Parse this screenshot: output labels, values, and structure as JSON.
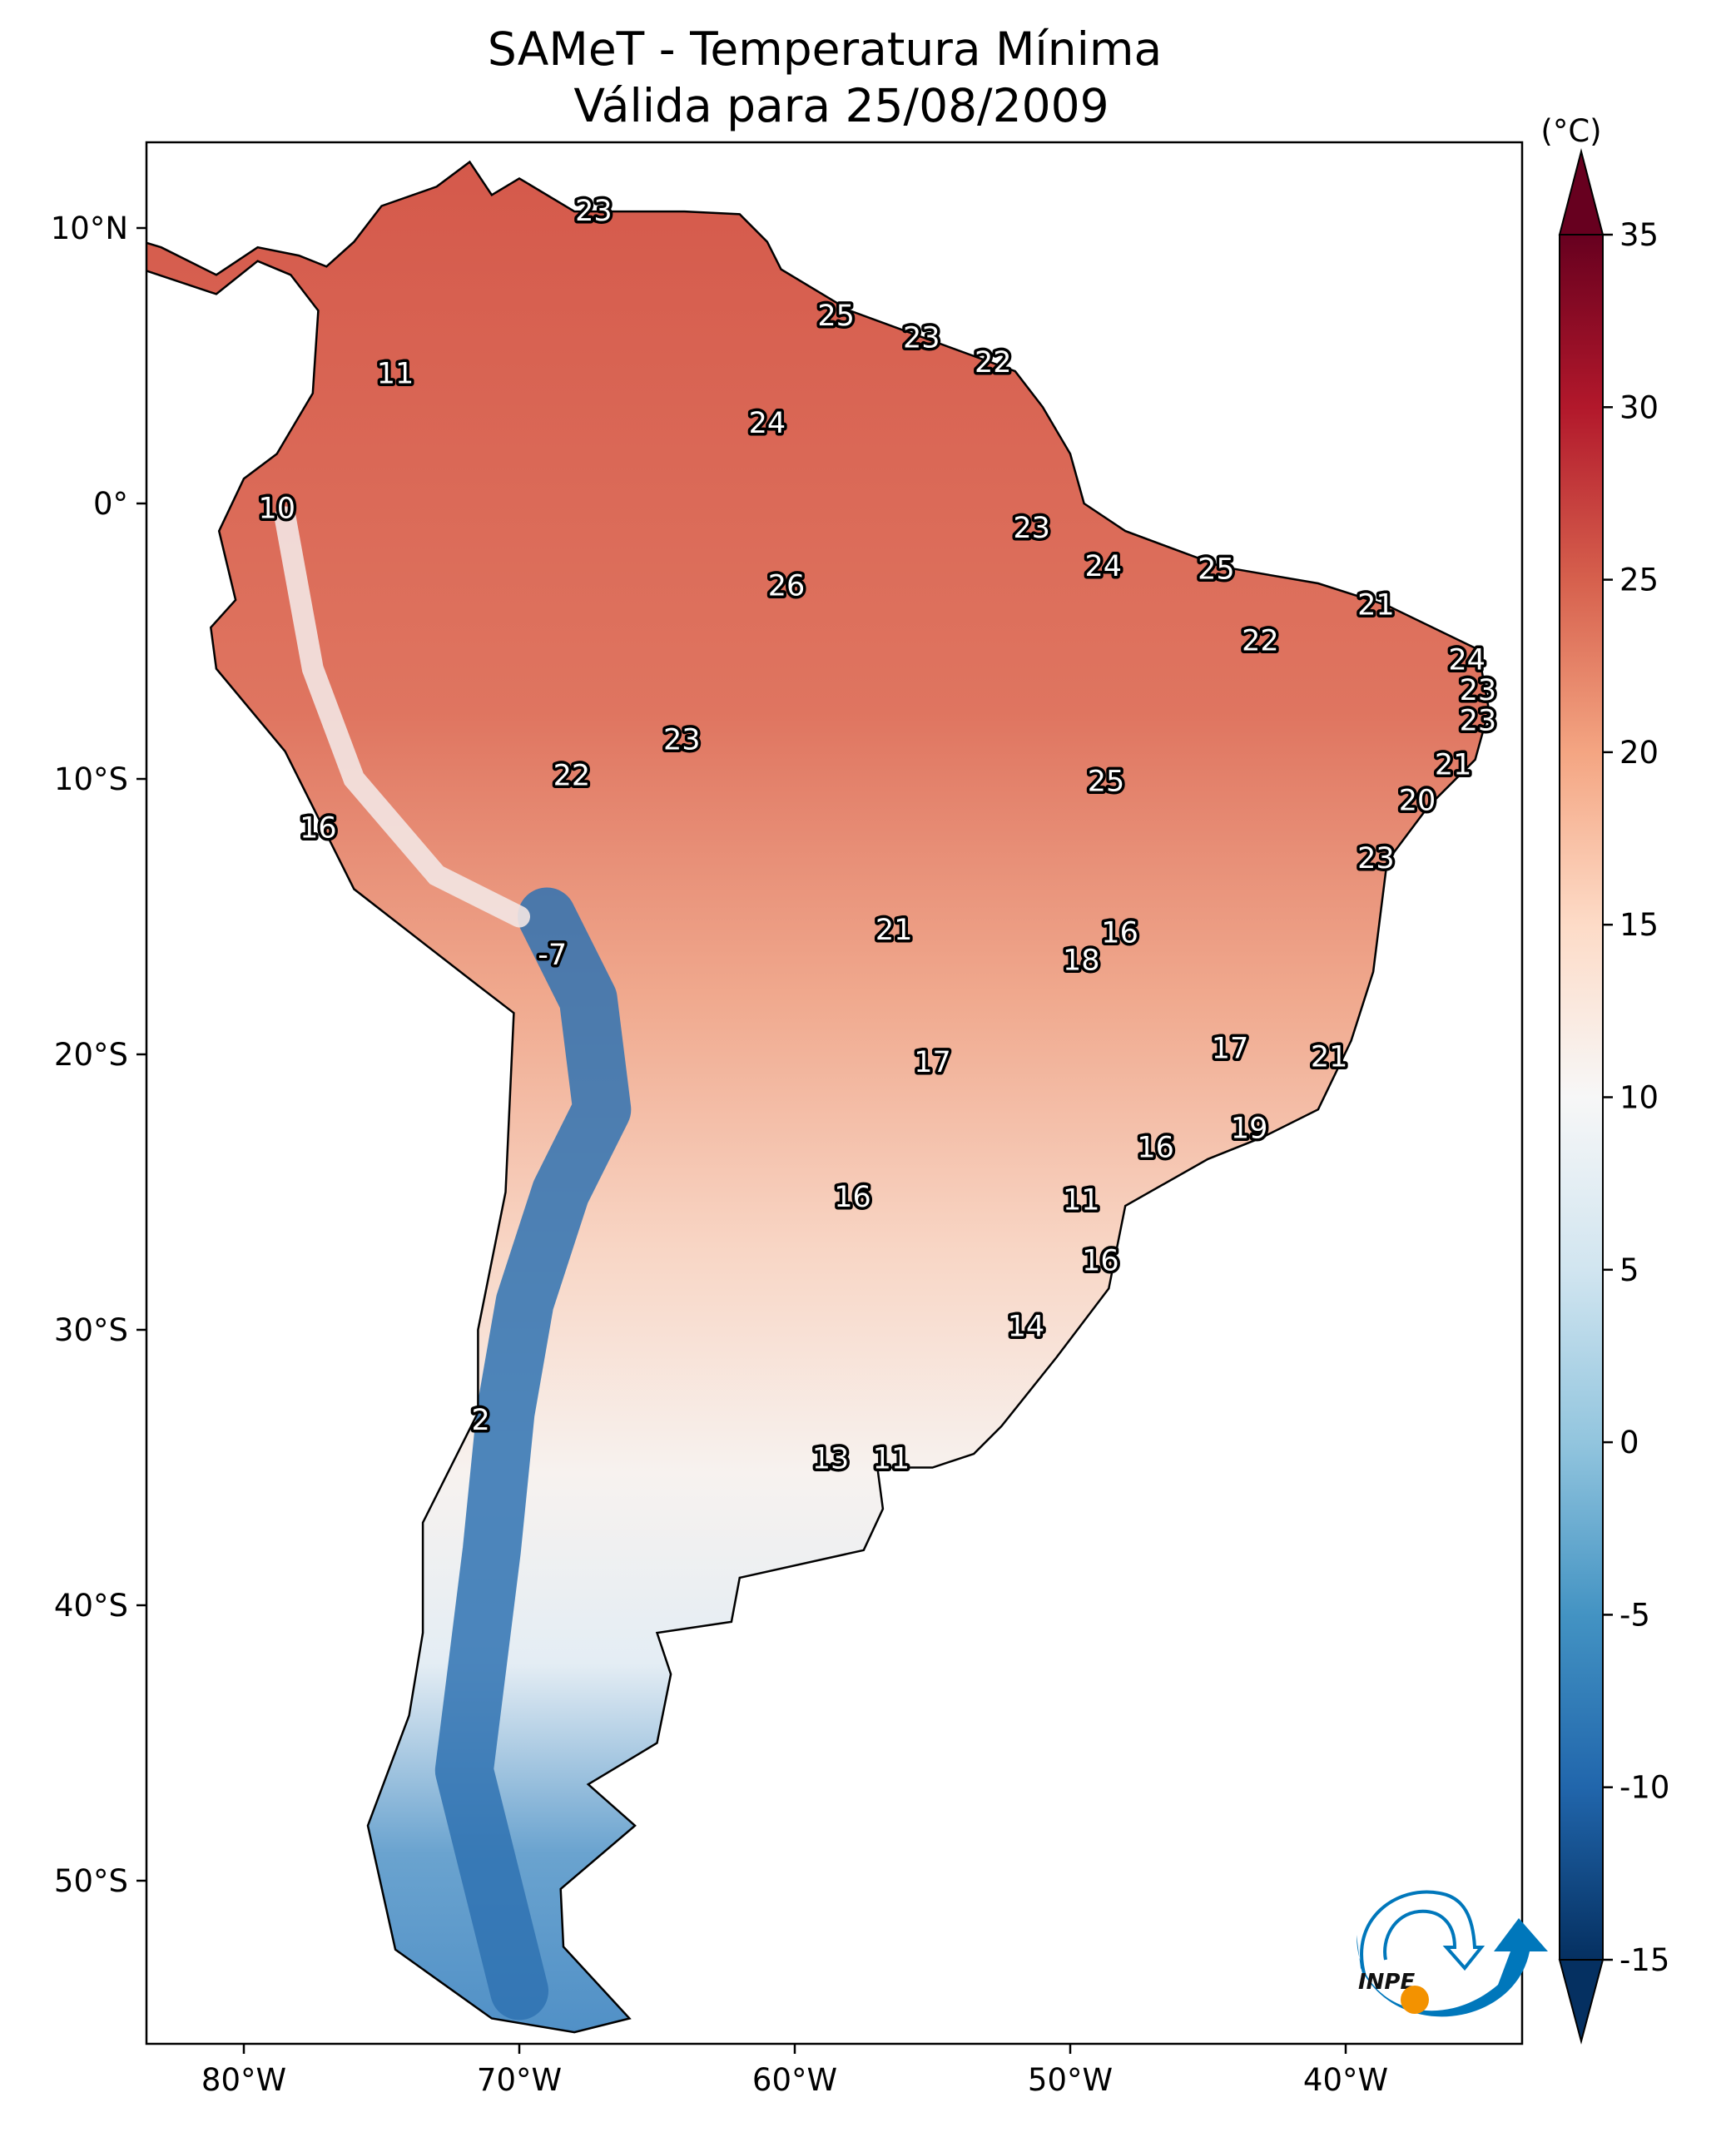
{
  "title": {
    "line1": "SAMeT - Temperatura Mínima",
    "line2": "Válida para 25/08/2009"
  },
  "map": {
    "extent_lon": [
      -83.5,
      -33.6
    ],
    "extent_lat": [
      -56,
      13.1
    ],
    "lon_ticks": [
      {
        "value": -80,
        "label": "80°W"
      },
      {
        "value": -70,
        "label": "70°W"
      },
      {
        "value": -60,
        "label": "60°W"
      },
      {
        "value": -50,
        "label": "50°W"
      },
      {
        "value": -40,
        "label": "40°W"
      }
    ],
    "lat_ticks": [
      {
        "value": 10,
        "label": "10°N"
      },
      {
        "value": 0,
        "label": "0°"
      },
      {
        "value": -10,
        "label": "10°S"
      },
      {
        "value": -20,
        "label": "20°S"
      },
      {
        "value": -30,
        "label": "30°S"
      },
      {
        "value": -40,
        "label": "40°S"
      },
      {
        "value": -50,
        "label": "50°S"
      }
    ],
    "stations": [
      {
        "lon": -67.3,
        "lat": 10.6,
        "value": "23"
      },
      {
        "lon": -58.5,
        "lat": 6.8,
        "value": "25"
      },
      {
        "lon": -55.4,
        "lat": 6.0,
        "value": "23"
      },
      {
        "lon": -52.8,
        "lat": 5.1,
        "value": "22"
      },
      {
        "lon": -74.5,
        "lat": 4.7,
        "value": "11"
      },
      {
        "lon": -61.0,
        "lat": 2.9,
        "value": "24"
      },
      {
        "lon": -78.8,
        "lat": -0.2,
        "value": "10"
      },
      {
        "lon": -51.4,
        "lat": -0.9,
        "value": "23"
      },
      {
        "lon": -48.8,
        "lat": -2.3,
        "value": "24"
      },
      {
        "lon": -44.7,
        "lat": -2.4,
        "value": "25"
      },
      {
        "lon": -60.3,
        "lat": -3.0,
        "value": "26"
      },
      {
        "lon": -38.9,
        "lat": -3.7,
        "value": "21"
      },
      {
        "lon": -43.1,
        "lat": -5.0,
        "value": "22"
      },
      {
        "lon": -35.6,
        "lat": -5.7,
        "value": "24"
      },
      {
        "lon": -35.2,
        "lat": -6.8,
        "value": "23"
      },
      {
        "lon": -35.2,
        "lat": -7.9,
        "value": "23"
      },
      {
        "lon": -64.1,
        "lat": -8.6,
        "value": "23"
      },
      {
        "lon": -36.1,
        "lat": -9.5,
        "value": "21"
      },
      {
        "lon": -68.1,
        "lat": -9.9,
        "value": "22"
      },
      {
        "lon": -48.7,
        "lat": -10.1,
        "value": "25"
      },
      {
        "lon": -37.4,
        "lat": -10.8,
        "value": "20"
      },
      {
        "lon": -77.3,
        "lat": -11.8,
        "value": "16"
      },
      {
        "lon": -38.9,
        "lat": -12.9,
        "value": "23"
      },
      {
        "lon": -56.4,
        "lat": -15.5,
        "value": "21"
      },
      {
        "lon": -48.2,
        "lat": -15.6,
        "value": "16"
      },
      {
        "lon": -49.6,
        "lat": -16.6,
        "value": "18"
      },
      {
        "lon": -68.8,
        "lat": -16.4,
        "value": "-7"
      },
      {
        "lon": -44.2,
        "lat": -19.8,
        "value": "17"
      },
      {
        "lon": -40.6,
        "lat": -20.1,
        "value": "21"
      },
      {
        "lon": -55.0,
        "lat": -20.3,
        "value": "17"
      },
      {
        "lon": -43.5,
        "lat": -22.7,
        "value": "19"
      },
      {
        "lon": -46.9,
        "lat": -23.4,
        "value": "16"
      },
      {
        "lon": -57.9,
        "lat": -25.2,
        "value": "16"
      },
      {
        "lon": -49.6,
        "lat": -25.3,
        "value": "11"
      },
      {
        "lon": -48.9,
        "lat": -27.5,
        "value": "16"
      },
      {
        "lon": -51.6,
        "lat": -29.9,
        "value": "14"
      },
      {
        "lon": -71.4,
        "lat": -33.3,
        "value": "2"
      },
      {
        "lon": -58.7,
        "lat": -34.7,
        "value": "13"
      },
      {
        "lon": -56.5,
        "lat": -34.7,
        "value": "11"
      }
    ]
  },
  "colorbar": {
    "unit": "(°C)",
    "range": [
      -15,
      35
    ],
    "extend": "both",
    "colormap": "RdBu_r",
    "ticks": [
      "35",
      "30",
      "25",
      "20",
      "15",
      "10",
      "5",
      "0",
      "-5",
      "-10",
      "-15"
    ],
    "colors": {
      "-15": "#053061",
      "-10": "#2166ac",
      "-5": "#4393c3",
      "0": "#92c5de",
      "5": "#d1e5f0",
      "10": "#f7f7f7",
      "15": "#fddbc7",
      "20": "#f4a582",
      "25": "#d6604d",
      "30": "#b2182b",
      "35": "#67001f"
    }
  },
  "logo": {
    "text": "INPE",
    "colors": {
      "blue": "#0077bb",
      "orange": "#f39200"
    }
  }
}
